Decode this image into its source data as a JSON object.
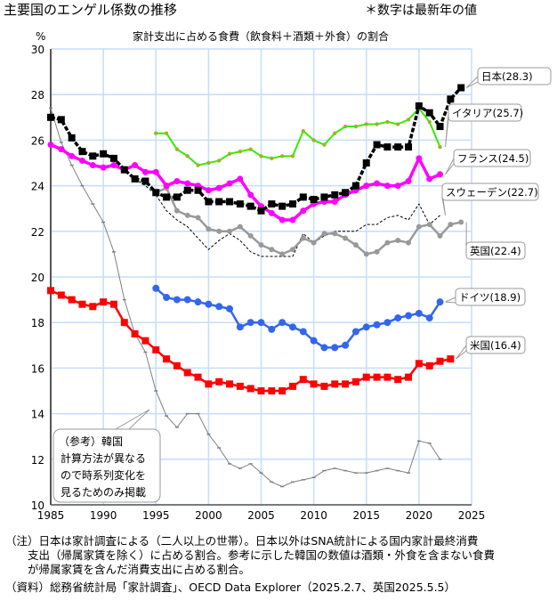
{
  "header": {
    "title": "主要国のエンゲル係数の推移",
    "remark": "＊数字は最新年の値"
  },
  "notes": [
    "（注）日本は家計調査による（二人以上の世帯）。日本以外はSNA統計による国内家計最終消費",
    "　　支出（帰属家賃を除く）に占める割合。参考に示した韓国の数値は酒類・外食を含まない食費",
    "　　が帰属家賃を含んだ消費支出に占める割合。",
    "（資料）総務省統計局「家計調査」、OECD Data Explorer（2025.2.7、英国2025.5.5）"
  ],
  "chart_data": {
    "type": "line",
    "title": "家計支出に占める食費（飲食料＋酒類＋外食）の割合",
    "ylabel": "%",
    "xlim": [
      1985,
      2025
    ],
    "ylim": [
      10,
      30
    ],
    "xticks": [
      1985,
      1990,
      1995,
      2000,
      2005,
      2010,
      2015,
      2020,
      2025
    ],
    "yticks": [
      10,
      12,
      14,
      16,
      18,
      20,
      22,
      24,
      26,
      28,
      30
    ],
    "grid": true,
    "series": [
      {
        "name": "日本",
        "label": "日本(28.3)",
        "color": "#000000",
        "start": 1985,
        "values": [
          27.0,
          26.9,
          26.1,
          25.5,
          25.3,
          25.4,
          25.2,
          24.7,
          24.3,
          24.2,
          23.7,
          23.5,
          23.5,
          23.8,
          23.8,
          23.3,
          23.3,
          23.3,
          23.2,
          23.1,
          22.9,
          23.2,
          23.1,
          23.2,
          23.5,
          23.4,
          23.5,
          23.6,
          23.7,
          24.0,
          25.0,
          25.8,
          25.7,
          25.7,
          25.7,
          27.5,
          27.2,
          26.6,
          27.8,
          28.3
        ]
      },
      {
        "name": "イタリア",
        "label": "イタリア(25.7)",
        "color": "#33ee00",
        "start": 1995,
        "values": [
          26.3,
          26.3,
          25.6,
          25.3,
          24.9,
          25.0,
          25.1,
          25.4,
          25.5,
          25.6,
          25.3,
          25.2,
          25.3,
          25.3,
          26.4,
          26.0,
          25.8,
          26.3,
          26.6,
          26.6,
          26.7,
          26.7,
          26.8,
          26.7,
          26.9,
          27.4,
          26.8,
          25.7
        ]
      },
      {
        "name": "フランス",
        "label": "フランス(24.5)",
        "color": "#ff00ff",
        "start": 1985,
        "values": [
          25.8,
          25.6,
          25.3,
          25.1,
          24.9,
          24.8,
          24.9,
          24.7,
          24.9,
          24.6,
          24.6,
          24.0,
          24.2,
          24.1,
          24.0,
          23.8,
          23.9,
          24.1,
          24.3,
          23.6,
          23.1,
          22.8,
          22.5,
          22.5,
          22.9,
          23.2,
          23.3,
          23.3,
          23.6,
          23.8,
          24.0,
          24.1,
          24.0,
          24.0,
          24.2,
          25.2,
          24.3,
          24.5
        ]
      },
      {
        "name": "スウェーデン",
        "label": "スウェーデン(22.7)",
        "color": "#000000",
        "start": 1993,
        "values": [
          24.3,
          24.0,
          23.6,
          22.9,
          22.5,
          22.2,
          21.7,
          21.2,
          21.6,
          21.9,
          21.6,
          21.1,
          20.9,
          20.9,
          20.9,
          20.9,
          21.9,
          21.5,
          21.8,
          22.0,
          22.0,
          22.0,
          22.3,
          22.3,
          22.6,
          22.7,
          22.5,
          23.2,
          22.3,
          22.7
        ]
      },
      {
        "name": "英国",
        "label": "英国(22.4)",
        "color": "#999999",
        "start": 1995,
        "values": [
          23.7,
          23.9,
          22.9,
          22.7,
          22.6,
          22.1,
          22.0,
          22.0,
          22.2,
          21.8,
          21.4,
          21.2,
          21.0,
          21.2,
          21.7,
          21.5,
          21.9,
          21.9,
          21.7,
          21.4,
          21.0,
          21.1,
          21.5,
          21.6,
          21.5,
          22.2,
          22.3,
          21.8,
          22.3,
          22.4
        ]
      },
      {
        "name": "ドイツ",
        "label": "ドイツ(18.9)",
        "color": "#3366ee",
        "start": 1995,
        "values": [
          19.5,
          19.1,
          19.0,
          19.0,
          18.9,
          18.8,
          18.7,
          18.6,
          17.8,
          18.0,
          18.0,
          17.7,
          18.0,
          17.8,
          17.6,
          17.2,
          16.9,
          16.9,
          17.0,
          17.6,
          17.8,
          17.9,
          18.0,
          18.2,
          18.3,
          18.4,
          18.2,
          18.9
        ]
      },
      {
        "name": "米国",
        "label": "米国(16.4)",
        "color": "#ff0000",
        "start": 1985,
        "values": [
          19.4,
          19.2,
          19.0,
          18.8,
          18.7,
          18.9,
          18.8,
          18.0,
          17.5,
          17.2,
          16.8,
          16.4,
          16.1,
          15.8,
          15.6,
          15.3,
          15.4,
          15.3,
          15.2,
          15.1,
          15.0,
          15.0,
          15.0,
          15.2,
          15.5,
          15.3,
          15.2,
          15.3,
          15.3,
          15.4,
          15.6,
          15.6,
          15.6,
          15.5,
          15.6,
          16.2,
          16.1,
          16.3,
          16.4
        ]
      },
      {
        "name": "韓国",
        "label": [
          "（参考）韓国",
          "計算方法が異なる",
          "ので時系列変化を",
          "見るためのみ掲載"
        ],
        "color": "#808080",
        "start": 1985,
        "values": [
          27.4,
          25.9,
          24.9,
          24.0,
          23.2,
          22.4,
          21.1,
          19.0,
          17.5,
          16.7,
          15.0,
          13.9,
          13.4,
          14.0,
          14.0,
          13.1,
          12.5,
          11.8,
          11.6,
          11.8,
          11.4,
          11.0,
          10.8,
          11.0,
          11.1,
          11.2,
          11.5,
          11.6,
          11.5,
          11.4,
          11.4,
          11.5,
          11.6,
          11.5,
          11.4,
          12.8,
          12.7,
          12.0
        ]
      }
    ]
  }
}
